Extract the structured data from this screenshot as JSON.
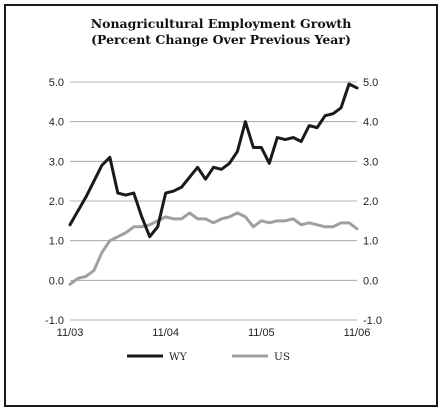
{
  "chart_data": {
    "type": "line",
    "title": "Nonagricultural Employment Growth",
    "subtitle": "(Percent Change Over Previous Year)",
    "xlabel": "",
    "ylabel": "",
    "ylim": [
      -1.0,
      5.0
    ],
    "y_ticks": [
      "5.0",
      "4.0",
      "3.0",
      "2.0",
      "1.0",
      "0.0",
      "-1.0"
    ],
    "x_tick_labels": [
      "11/03",
      "11/04",
      "11/05",
      "11/06"
    ],
    "x": [
      "2003-11",
      "2003-12",
      "2004-01",
      "2004-02",
      "2004-03",
      "2004-04",
      "2004-05",
      "2004-06",
      "2004-07",
      "2004-08",
      "2004-09",
      "2004-10",
      "2004-11",
      "2004-12",
      "2005-01",
      "2005-02",
      "2005-03",
      "2005-04",
      "2005-05",
      "2005-06",
      "2005-07",
      "2005-08",
      "2005-09",
      "2005-10",
      "2005-11",
      "2005-12",
      "2006-01",
      "2006-02",
      "2006-03",
      "2006-04",
      "2006-05",
      "2006-06",
      "2006-07",
      "2006-08",
      "2006-09",
      "2006-10",
      "2006-11"
    ],
    "grid": "horizontal",
    "legend_position": "bottom",
    "series": [
      {
        "name": "WY",
        "color": "#1a1a1a",
        "values": [
          1.4,
          1.75,
          2.1,
          2.5,
          2.9,
          3.1,
          2.2,
          2.15,
          2.2,
          1.6,
          1.1,
          1.35,
          2.2,
          2.25,
          2.35,
          2.6,
          2.85,
          2.55,
          2.85,
          2.8,
          2.95,
          3.25,
          4.0,
          3.35,
          3.35,
          2.95,
          3.6,
          3.55,
          3.6,
          3.5,
          3.9,
          3.85,
          4.15,
          4.2,
          4.35,
          4.95,
          4.85
        ]
      },
      {
        "name": "US",
        "color": "#a0a0a0",
        "values": [
          -0.1,
          0.05,
          0.1,
          0.25,
          0.7,
          1.0,
          1.1,
          1.2,
          1.35,
          1.35,
          1.4,
          1.5,
          1.6,
          1.55,
          1.55,
          1.7,
          1.55,
          1.55,
          1.45,
          1.55,
          1.6,
          1.7,
          1.6,
          1.35,
          1.5,
          1.45,
          1.5,
          1.5,
          1.55,
          1.4,
          1.45,
          1.4,
          1.35,
          1.35,
          1.45,
          1.45,
          1.3
        ]
      }
    ]
  }
}
